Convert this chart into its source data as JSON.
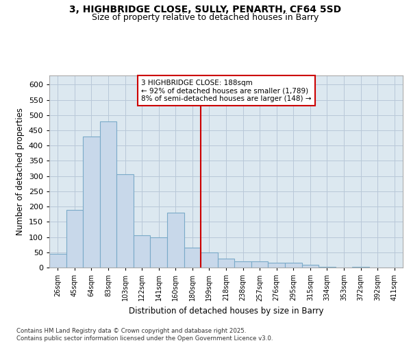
{
  "title_line1": "3, HIGHBRIDGE CLOSE, SULLY, PENARTH, CF64 5SD",
  "title_line2": "Size of property relative to detached houses in Barry",
  "xlabel": "Distribution of detached houses by size in Barry",
  "ylabel": "Number of detached properties",
  "categories": [
    "26sqm",
    "45sqm",
    "64sqm",
    "83sqm",
    "103sqm",
    "122sqm",
    "141sqm",
    "160sqm",
    "180sqm",
    "199sqm",
    "218sqm",
    "238sqm",
    "257sqm",
    "276sqm",
    "295sqm",
    "315sqm",
    "334sqm",
    "353sqm",
    "372sqm",
    "392sqm",
    "411sqm"
  ],
  "values": [
    45,
    190,
    430,
    480,
    305,
    105,
    100,
    180,
    65,
    50,
    30,
    20,
    20,
    15,
    15,
    10,
    3,
    1,
    3,
    1,
    1
  ],
  "bar_color": "#c8d8ea",
  "bar_edge_color": "#7aaac8",
  "grid_color": "#b8c8d8",
  "background_color": "#dce8f0",
  "vline_x_index": 8,
  "vline_color": "#cc0000",
  "annotation_line1": "3 HIGHBRIDGE CLOSE: 188sqm",
  "annotation_line2": "← 92% of detached houses are smaller (1,789)",
  "annotation_line3": "8% of semi-detached houses are larger (148) →",
  "footer_text": "Contains HM Land Registry data © Crown copyright and database right 2025.\nContains public sector information licensed under the Open Government Licence v3.0.",
  "ylim": [
    0,
    630
  ],
  "yticks": [
    0,
    50,
    100,
    150,
    200,
    250,
    300,
    350,
    400,
    450,
    500,
    550,
    600
  ]
}
